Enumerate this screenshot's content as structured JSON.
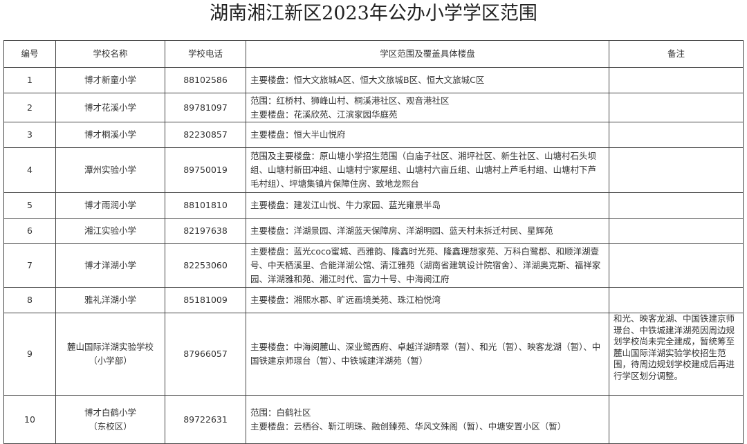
{
  "title": "湖南湘江新区2023年公办小学学区范围",
  "columns": [
    "编号",
    "学校名称",
    "学校电话",
    "学区范围及覆盖具体楼盘",
    "备注"
  ],
  "rows": [
    {
      "no": "1",
      "name": [
        "博才新童小学"
      ],
      "phone": "88102586",
      "scope": [
        "主要楼盘：恒大文旅城A区、恒大文旅城B区、恒大文旅城C区"
      ],
      "note": ""
    },
    {
      "no": "2",
      "name": [
        "博才花溪小学"
      ],
      "phone": "89781097",
      "scope": [
        "范围：红桥村、狮峰山村、桐溪港社区、观音港社区",
        "主要楼盘：花溪欣苑、江滨家园华庭苑"
      ],
      "note": ""
    },
    {
      "no": "3",
      "name": [
        "博才桐溪小学"
      ],
      "phone": "82230857",
      "scope": [
        "主要楼盘：恒大半山悦府"
      ],
      "note": ""
    },
    {
      "no": "4",
      "name": [
        "潭州实验小学"
      ],
      "phone": "89750019",
      "scope": [
        "范围及主要楼盘：原山塘小学招生范围（白庙子社区、湘坪社区、新生社区、山塘村石头坝组、山塘村新田冲组、山塘村宁家屋组、山塘村六亩丘组、山塘村上芦毛村组、山塘村下芦毛村组）、坪塘集镇片保障住房、致地龙熙台"
      ],
      "note": ""
    },
    {
      "no": "5",
      "name": [
        "博才雨润小学"
      ],
      "phone": "88101810",
      "scope": [
        "主要楼盘：建发江山悦、牛力家园、蓝光雍景半岛"
      ],
      "note": ""
    },
    {
      "no": "6",
      "name": [
        "湘江实验小学"
      ],
      "phone": "82197638",
      "scope": [
        "主要楼盘：洋湖景园、洋湖蓝天保障房、洋湖明园、蓝天村未拆迁村民、星辉苑"
      ],
      "note": ""
    },
    {
      "no": "7",
      "name": [
        "博才洋湖小学"
      ],
      "phone": "82253060",
      "scope": [
        "主要楼盘：蓝光coco蜜城、西雅韵、隆鑫时光苑、隆鑫理想家苑、万科白鹭郡、和顺洋湖壹号、中天栖溪里、合能洋湖公馆、清江雅苑（湖南省建筑设计院宿舍）、洋湖奥克斯、福祥家园、洋湖雅和苑、湘江时代、富力十号、中海阅江府"
      ],
      "note": ""
    },
    {
      "no": "8",
      "name": [
        "雅礼洋湖小学"
      ],
      "phone": "85181009",
      "scope": [
        "主要楼盘：湘熙水郡、旷远画境美苑、珠江柏悦湾"
      ],
      "note": ""
    },
    {
      "no": "9",
      "name": [
        "麓山国际洋湖实验学校",
        "（小学部）"
      ],
      "phone": "87966057",
      "scope": [
        "主要楼盘：中海阅麓山、深业鹭西府、卓越洋湖晴翠（暂）、和光（暂）、映客龙湖（暂）、中国铁建京师璟台（暂）、中铁城建洋湖苑（暂）"
      ],
      "note": "和光、映客龙湖、中国铁建京师璟台、中铁城建洋湖苑因周边规划学校尚未完全建成，暂统筹至麓山国际洋湖实验学校招生范围，待周边规划学校建成后再进行学区划分调整。"
    },
    {
      "no": "10",
      "name": [
        "博才白鹤小学",
        "（东校区）"
      ],
      "phone": "89722631",
      "scope": [
        "范围：白鹤社区",
        "主要楼盘：云栖谷、靳江明珠、融创臻苑、华风文殊阁（暂）、中塘安置小区（暂）"
      ],
      "note": ""
    }
  ]
}
